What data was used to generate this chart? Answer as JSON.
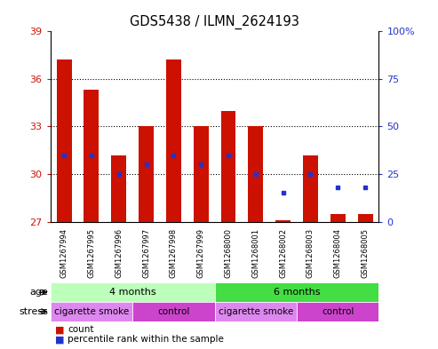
{
  "title": "GDS5438 / ILMN_2624193",
  "samples": [
    "GSM1267994",
    "GSM1267995",
    "GSM1267996",
    "GSM1267997",
    "GSM1267998",
    "GSM1267999",
    "GSM1268000",
    "GSM1268001",
    "GSM1268002",
    "GSM1268003",
    "GSM1268004",
    "GSM1268005"
  ],
  "count_values": [
    37.2,
    35.3,
    31.2,
    33.0,
    37.2,
    33.0,
    34.0,
    33.0,
    27.1,
    31.2,
    27.5,
    27.5
  ],
  "count_base": 27.0,
  "percentile_rank": [
    35,
    35,
    25,
    30,
    35,
    30,
    35,
    25,
    15,
    25,
    18,
    18
  ],
  "ylim_left": [
    27,
    39
  ],
  "ylim_right": [
    0,
    100
  ],
  "yticks_left": [
    27,
    30,
    33,
    36,
    39
  ],
  "yticks_right": [
    0,
    25,
    50,
    75,
    100
  ],
  "grid_values": [
    30,
    33,
    36
  ],
  "bar_color": "#cc1100",
  "dot_color": "#2233cc",
  "age_groups": [
    {
      "label": "4 months",
      "start": 0,
      "end": 6,
      "color": "#bbffbb"
    },
    {
      "label": "6 months",
      "start": 6,
      "end": 12,
      "color": "#44dd44"
    }
  ],
  "stress_labels": [
    "cigarette smoke",
    "control",
    "cigarette smoke",
    "control"
  ],
  "stress_ranges": [
    [
      0,
      3
    ],
    [
      3,
      6
    ],
    [
      6,
      9
    ],
    [
      9,
      12
    ]
  ],
  "stress_colors": [
    "#dd88ee",
    "#cc44cc",
    "#dd88ee",
    "#cc44cc"
  ],
  "tick_color_left": "#cc1100",
  "tick_color_right": "#2233cc",
  "xticklabel_bg": "#cccccc"
}
